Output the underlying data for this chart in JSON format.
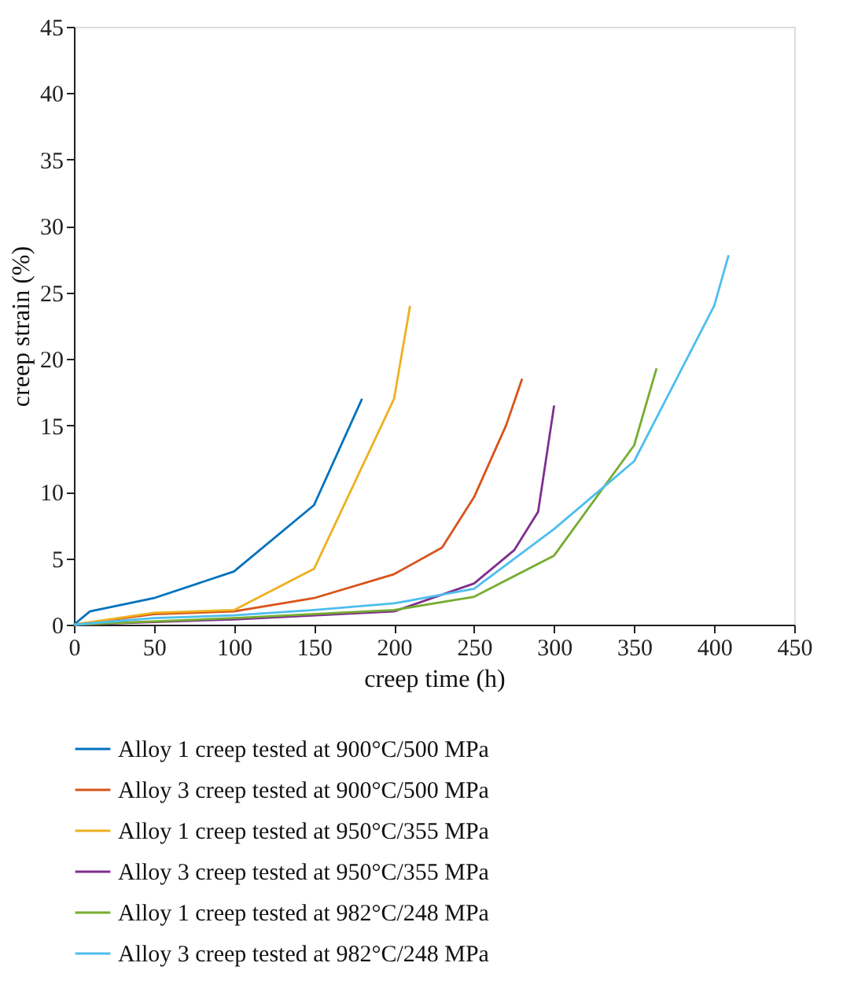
{
  "chart_data": {
    "type": "line",
    "xlabel": "creep time (h)",
    "ylabel": "creep strain (%)",
    "xlim": [
      0,
      450
    ],
    "xticks": [
      0,
      50,
      100,
      150,
      200,
      250,
      300,
      350,
      400,
      450
    ],
    "ylim": [
      0,
      45
    ],
    "yticks": [
      0,
      5,
      10,
      15,
      20,
      25,
      30,
      35,
      40,
      45
    ],
    "grid": false,
    "legend": "bottom",
    "marker": "none",
    "line_style": "solid",
    "series": [
      {
        "name": "Alloy 1 creep tested at 900°C/500 MPa",
        "color": "#0072bd",
        "x": [
          0,
          10,
          50,
          100,
          150,
          180
        ],
        "values": [
          0,
          1,
          2,
          4,
          9,
          17
        ]
      },
      {
        "name": "Alloy 3 creep tested at 900°C/500 MPa",
        "color": "#d95319",
        "x": [
          0,
          50,
          100,
          150,
          200,
          230,
          250,
          270,
          280
        ],
        "values": [
          0,
          0.8,
          1,
          2,
          3.8,
          5.8,
          9.6,
          15,
          18.5
        ]
      },
      {
        "name": "Alloy 1 creep tested at 950°C/355 MPa",
        "color": "#edb120",
        "x": [
          0,
          50,
          100,
          150,
          200,
          210
        ],
        "values": [
          0,
          0.9,
          1.1,
          4.2,
          17,
          24
        ]
      },
      {
        "name": "Alloy 3 creep tested at 950°C/355 MPa",
        "color": "#7e2f8e",
        "x": [
          0,
          100,
          200,
          250,
          275,
          290,
          300
        ],
        "values": [
          0,
          0.4,
          1,
          3.1,
          5.6,
          8.5,
          16.5
        ]
      },
      {
        "name": "Alloy 1 creep tested at 982°C/248 MPa",
        "color": "#77ac30",
        "x": [
          0,
          100,
          200,
          250,
          300,
          350,
          364
        ],
        "values": [
          0,
          0.5,
          1.1,
          2.1,
          5.2,
          13.5,
          19.3
        ]
      },
      {
        "name": "Alloy 3 creep tested at 982°C/248 MPa",
        "color": "#4dbeee",
        "x": [
          0,
          50,
          100,
          150,
          200,
          250,
          300,
          350,
          400,
          409
        ],
        "values": [
          0,
          0.5,
          0.7,
          1.1,
          1.6,
          2.7,
          7.2,
          12.3,
          24,
          27.8
        ]
      }
    ]
  }
}
